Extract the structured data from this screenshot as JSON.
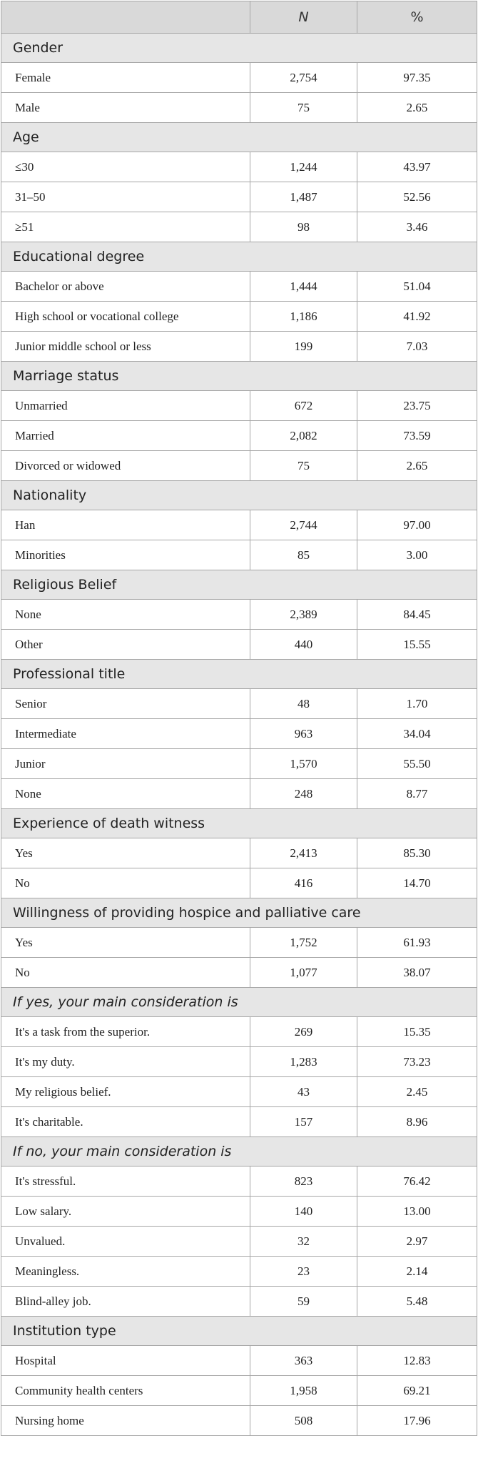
{
  "header": {
    "col1": "",
    "col2": "N",
    "col3": "%"
  },
  "sections": [
    {
      "title": "Gender",
      "italic": false,
      "rows": [
        {
          "label": "Female",
          "n": "2,754",
          "pct": "97.35"
        },
        {
          "label": "Male",
          "n": "75",
          "pct": "2.65"
        }
      ]
    },
    {
      "title": "Age",
      "italic": false,
      "rows": [
        {
          "label": "≤30",
          "n": "1,244",
          "pct": "43.97"
        },
        {
          "label": "31–50",
          "n": "1,487",
          "pct": "52.56"
        },
        {
          "label": "≥51",
          "n": "98",
          "pct": "3.46"
        }
      ]
    },
    {
      "title": "Educational degree",
      "italic": false,
      "rows": [
        {
          "label": "Bachelor or above",
          "n": "1,444",
          "pct": "51.04"
        },
        {
          "label": "High school or vocational college",
          "n": "1,186",
          "pct": "41.92"
        },
        {
          "label": "Junior middle school or less",
          "n": "199",
          "pct": "7.03"
        }
      ]
    },
    {
      "title": "Marriage status",
      "italic": false,
      "rows": [
        {
          "label": "Unmarried",
          "n": "672",
          "pct": "23.75"
        },
        {
          "label": "Married",
          "n": "2,082",
          "pct": "73.59"
        },
        {
          "label": "Divorced or widowed",
          "n": "75",
          "pct": "2.65"
        }
      ]
    },
    {
      "title": "Nationality",
      "italic": false,
      "rows": [
        {
          "label": "Han",
          "n": "2,744",
          "pct": "97.00"
        },
        {
          "label": "Minorities",
          "n": "85",
          "pct": "3.00"
        }
      ]
    },
    {
      "title": "Religious Belief",
      "italic": false,
      "rows": [
        {
          "label": "None",
          "n": "2,389",
          "pct": "84.45"
        },
        {
          "label": "Other",
          "n": "440",
          "pct": "15.55"
        }
      ]
    },
    {
      "title": "Professional title",
      "italic": false,
      "rows": [
        {
          "label": "Senior",
          "n": "48",
          "pct": "1.70"
        },
        {
          "label": "Intermediate",
          "n": "963",
          "pct": "34.04"
        },
        {
          "label": "Junior",
          "n": "1,570",
          "pct": "55.50"
        },
        {
          "label": "None",
          "n": "248",
          "pct": "8.77"
        }
      ]
    },
    {
      "title": "Experience of death witness",
      "italic": false,
      "rows": [
        {
          "label": "Yes",
          "n": "2,413",
          "pct": "85.30"
        },
        {
          "label": "No",
          "n": "416",
          "pct": "14.70"
        }
      ]
    },
    {
      "title": "Willingness of providing hospice and palliative care",
      "italic": false,
      "rows": [
        {
          "label": "Yes",
          "n": "1,752",
          "pct": "61.93"
        },
        {
          "label": "No",
          "n": "1,077",
          "pct": "38.07"
        }
      ]
    },
    {
      "title": "If yes, your main consideration is",
      "italic": true,
      "rows": [
        {
          "label": "It's a task from the superior.",
          "n": "269",
          "pct": "15.35"
        },
        {
          "label": "It's my duty.",
          "n": "1,283",
          "pct": "73.23"
        },
        {
          "label": "My religious belief.",
          "n": "43",
          "pct": "2.45"
        },
        {
          "label": "It's charitable.",
          "n": "157",
          "pct": "8.96"
        }
      ]
    },
    {
      "title": "If no, your main consideration is",
      "italic": true,
      "rows": [
        {
          "label": "It's stressful.",
          "n": "823",
          "pct": "76.42"
        },
        {
          "label": "Low salary.",
          "n": "140",
          "pct": "13.00"
        },
        {
          "label": "Unvalued.",
          "n": "32",
          "pct": "2.97"
        },
        {
          "label": "Meaningless.",
          "n": "23",
          "pct": "2.14"
        },
        {
          "label": "Blind-alley job.",
          "n": "59",
          "pct": "5.48"
        }
      ]
    },
    {
      "title": "Institution type",
      "italic": false,
      "rows": [
        {
          "label": "Hospital",
          "n": "363",
          "pct": "12.83"
        },
        {
          "label": "Community health centers",
          "n": "1,958",
          "pct": "69.21"
        },
        {
          "label": "Nursing home",
          "n": "508",
          "pct": "17.96"
        }
      ]
    }
  ]
}
